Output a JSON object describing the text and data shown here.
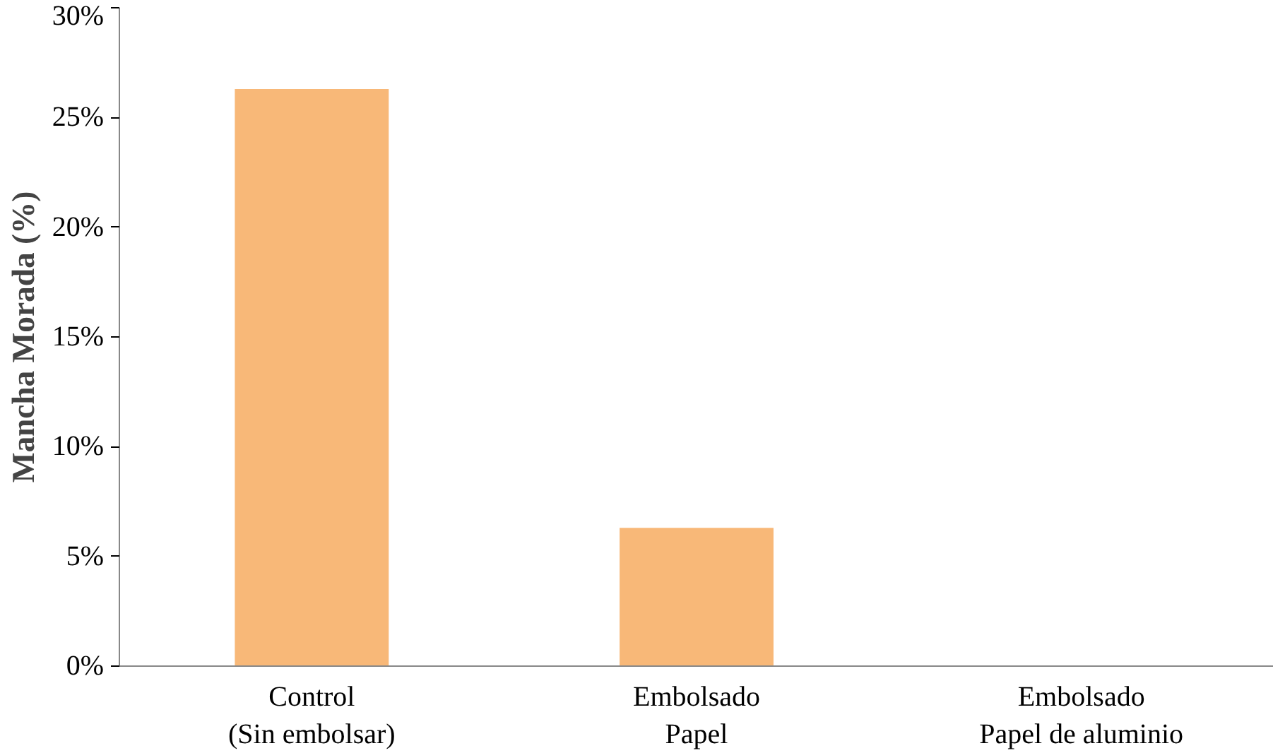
{
  "chart_data": {
    "type": "bar",
    "ylabel": "Mancha Morada (%)",
    "categories": [
      "Control\n(Sin embolsar)",
      "Embolsado\nPapel",
      "Embolsado\nPapel de aluminio"
    ],
    "values": [
      26.3,
      6.3,
      0
    ],
    "color": "#f8b878",
    "ylim": [
      0,
      30
    ],
    "yticks": [
      {
        "value": 0,
        "label": "0%"
      },
      {
        "value": 5,
        "label": "5%"
      },
      {
        "value": 10,
        "label": "10%"
      },
      {
        "value": 15,
        "label": "15%"
      },
      {
        "value": 20,
        "label": "20%"
      },
      {
        "value": 25,
        "label": "25%"
      },
      {
        "value": 30,
        "label": "30%"
      }
    ],
    "grid": false
  }
}
